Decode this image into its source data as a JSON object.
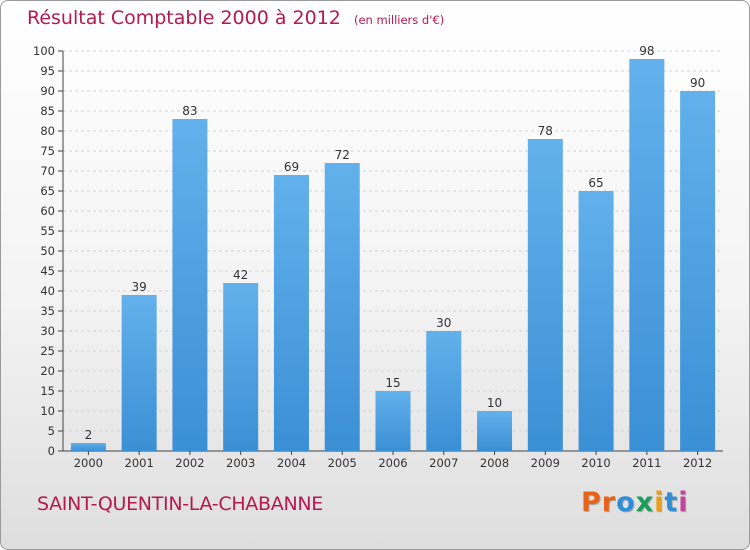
{
  "chart_data": {
    "type": "bar",
    "title": "Résultat Comptable 2000 à 2012",
    "subtitle": "(en milliers d'€)",
    "xlabel": "",
    "ylabel": "",
    "categories": [
      "2000",
      "2001",
      "2002",
      "2003",
      "2004",
      "2005",
      "2006",
      "2007",
      "2008",
      "2009",
      "2010",
      "2011",
      "2012"
    ],
    "values": [
      2,
      39,
      83,
      42,
      69,
      72,
      15,
      30,
      10,
      78,
      65,
      98,
      90
    ],
    "ylim": [
      0,
      100
    ],
    "ytick_step": 5,
    "grid": true,
    "bar_color": "#3b8fd4",
    "bar_color_light": "#62b1ec",
    "grid_color": "#d4d4d4",
    "text_color": "#333333"
  },
  "footer": {
    "city": "SAINT-QUENTIN-LA-CHABANNE",
    "brand_letters": [
      "P",
      "r",
      "o",
      "x",
      "i",
      "t",
      "i"
    ],
    "brand_colors": [
      "#e8631a",
      "#e8631a",
      "#2f8fd6",
      "#1a9e5a",
      "#e8a11a",
      "#2f8fd6",
      "#c0449a"
    ]
  }
}
